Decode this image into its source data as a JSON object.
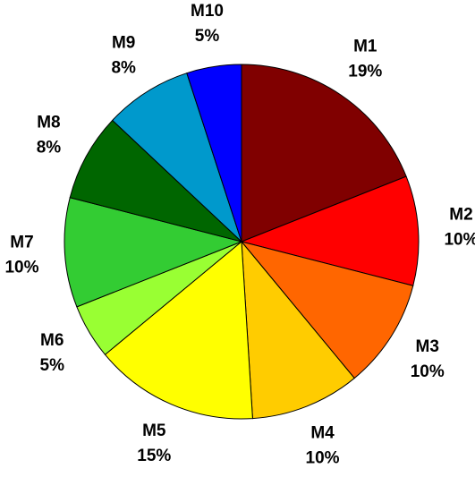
{
  "chart_data": {
    "type": "pie",
    "categories": [
      "M1",
      "M2",
      "M3",
      "M4",
      "M5",
      "M6",
      "M7",
      "M8",
      "M9",
      "M10"
    ],
    "values": [
      19,
      10,
      10,
      10,
      15,
      5,
      10,
      8,
      8,
      5
    ],
    "value_labels": [
      "19%",
      "10%",
      "10%",
      "10%",
      "15%",
      "5%",
      "10%",
      "8%",
      "8%",
      "5%"
    ],
    "colors": [
      "#800000",
      "#ff0000",
      "#ff6600",
      "#ffcc00",
      "#ffff00",
      "#99ff33",
      "#33cc33",
      "#006600",
      "#0099cc",
      "#0000ff"
    ]
  }
}
